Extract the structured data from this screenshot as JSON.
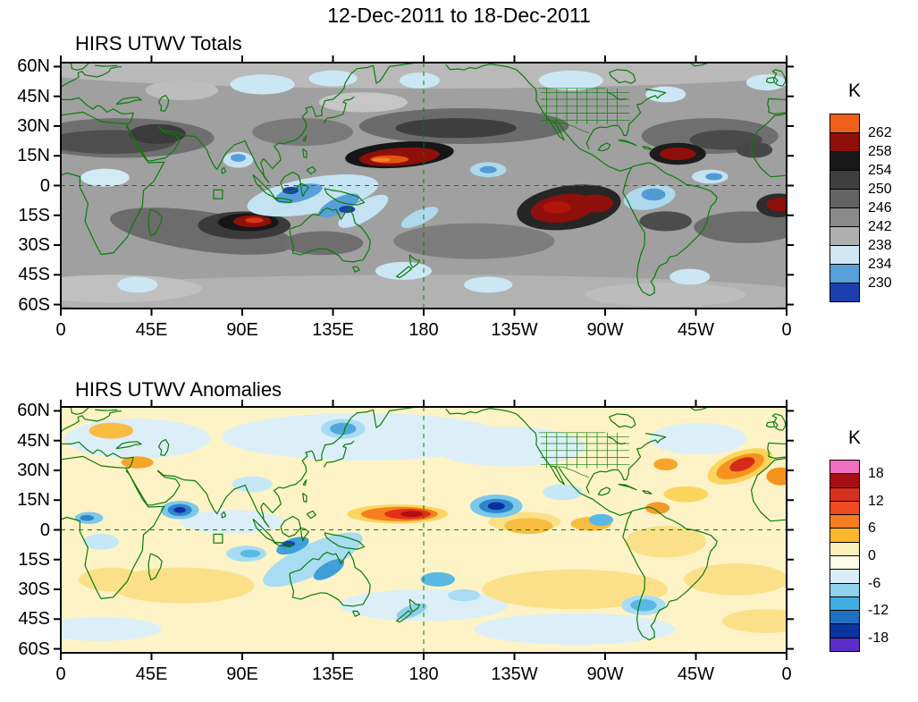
{
  "title": "12-Dec-2011 to 18-Dec-2011",
  "panels": [
    {
      "title": "HIRS UTWV Totals",
      "colorbar": {
        "unit": "K",
        "segments": [
          {
            "color": "#ef6119"
          },
          {
            "color": "#8f0f0b",
            "label": "262"
          },
          {
            "color": "#181818",
            "label": "258"
          },
          {
            "color": "#404040",
            "label": "254"
          },
          {
            "color": "#636363",
            "label": "250"
          },
          {
            "color": "#8a8a8a",
            "label": "246"
          },
          {
            "color": "#b0b0b0",
            "label": "242"
          },
          {
            "color": "#cfe8f4",
            "label": "238"
          },
          {
            "color": "#569fd8",
            "label": "234"
          },
          {
            "color": "#1c3fae",
            "label": "230"
          }
        ]
      }
    },
    {
      "title": "HIRS UTWV Anomalies",
      "colorbar": {
        "unit": "K",
        "segments": [
          {
            "color": "#f46ec0"
          },
          {
            "color": "#a50f15",
            "label": "18"
          },
          {
            "color": "#d7301f"
          },
          {
            "color": "#ef4a22",
            "label": "12"
          },
          {
            "color": "#f57f20"
          },
          {
            "color": "#fdb72e",
            "label": "6"
          },
          {
            "color": "#fcf0bc"
          },
          {
            "color": "#fefce9",
            "label": "0"
          },
          {
            "color": "#d9eef8"
          },
          {
            "color": "#8fd2ee",
            "label": "-6"
          },
          {
            "color": "#41aee2"
          },
          {
            "color": "#1a72c0",
            "label": "-12"
          },
          {
            "color": "#0a34a0"
          },
          {
            "color": "#5b2ec8",
            "label": "-18"
          }
        ]
      }
    }
  ],
  "axes": {
    "lat_ticks": [
      "60N",
      "45N",
      "30N",
      "15N",
      "0",
      "15S",
      "30S",
      "45S",
      "60S"
    ],
    "lat_values": [
      60,
      45,
      30,
      15,
      0,
      -15,
      -30,
      -45,
      -60
    ],
    "lon_ticks": [
      "0",
      "45E",
      "90E",
      "135E",
      "180",
      "135W",
      "90W",
      "45W",
      "0"
    ],
    "lon_values": [
      0,
      45,
      90,
      135,
      180,
      225,
      270,
      315,
      360
    ]
  },
  "map_colors": {
    "coastline": "#0a7c0a",
    "frame": "#000000",
    "totals_background": "#a0a0a0",
    "anomalies_background": "#fdf3c6"
  },
  "chart_data": [
    {
      "type": "heatmap",
      "title": "HIRS UTWV Totals",
      "subtitle": "12-Dec-2011 to 18-Dec-2011",
      "units": "K",
      "projection": "cylindrical equidistant, longitude 0E eastward to 0E, latitude ~62N to ~62S",
      "x_tick_labels": [
        "0",
        "45E",
        "90E",
        "135E",
        "180",
        "135W",
        "90W",
        "45W",
        "0"
      ],
      "y_tick_labels": [
        "60N",
        "45N",
        "30N",
        "15N",
        "0",
        "15S",
        "30S",
        "45S",
        "60S"
      ],
      "colorbar_levels_K": [
        230,
        234,
        238,
        242,
        246,
        250,
        254,
        258,
        262
      ],
      "colorbar_colors_top_to_bottom": [
        "#ef6119",
        "#8f0f0b",
        "#181818",
        "#404040",
        "#636363",
        "#8a8a8a",
        "#b0b0b0",
        "#cfe8f4",
        "#569fd8",
        "#1c3fae"
      ],
      "grid": false,
      "legend_position": "right colorbar",
      "notable_features": [
        "Warm/dry maximum >262 K elongated along ~13-15N from 150E to 180 (central North Pacific), orange core surrounded by dark red and near-black shading",
        "Warm core ~258-262 K near 18S, 90-100E (south Indian Ocean)",
        "Broad warm/dry region 254-262 K near 5-18S, 120-90W (southeast Pacific) extending toward South America",
        "Warm spot ~258 K near 16N, 55W (tropical North Atlantic) and near 10S at the right map edge",
        "Cold/moist minima <234 K over the Maritime Continent (0-15S, 100-150E), Bay of Bengal (~13N, 88E), central Pacific ITCZ (~8N, 148W), Amazon (~5S, 65W) and NE South America coast",
        "Light-blue (234-238 K) patches in midlatitudes near 50-60N and 40-50S",
        "Gray background values 238-254 K dominate the subtropics",
        "Dashed reference lines at the equator and at 180 longitude; small green survey box near 78E, 4S"
      ]
    },
    {
      "type": "heatmap",
      "title": "HIRS UTWV Anomalies",
      "subtitle": "12-Dec-2011 to 18-Dec-2011",
      "units": "K",
      "projection": "cylindrical equidistant, longitude 0E eastward to 0E, latitude ~62N to ~62S",
      "x_tick_labels": [
        "0",
        "45E",
        "90E",
        "135E",
        "180",
        "135W",
        "90W",
        "45W",
        "0"
      ],
      "y_tick_labels": [
        "60N",
        "45N",
        "30N",
        "15N",
        "0",
        "15S",
        "30S",
        "45S",
        "60S"
      ],
      "colorbar_levels_K": [
        -18,
        -12,
        -6,
        0,
        6,
        12,
        18
      ],
      "colorbar_colors_top_to_bottom": [
        "#f46ec0",
        "#a50f15",
        "#d7301f",
        "#ef4a22",
        "#f57f20",
        "#fdb72e",
        "#fcf0bc",
        "#fefce9",
        "#d9eef8",
        "#8fd2ee",
        "#41aee2",
        "#1a72c0",
        "#0a34a0",
        "#5b2ec8"
      ],
      "grid": false,
      "legend_position": "right colorbar",
      "notable_features": [
        "Strong positive anomaly +6 to +15 K along ~8N from 150E to 170W (central equatorial Pacific), red core near 175E",
        "Strong positive anomaly +6 to +12 K near 30-35N, 25-10W (northeast Atlantic), red core",
        "Negative anomaly -12 to -18 K centered near 12N, 145W (dark blue core)",
        "Negative anomaly down to -12 K near 10N, 60E (Arabian Sea)",
        "Negative band -6 to -12 K from Indonesia southeastward toward 25S, 140E",
        "Scattered -6 K patches: south-central Pacific ~25S 175W, southern South America ~38S 70W, NW Pacific ~50N 140E, west equatorial Africa",
        "Weak positive anomalies 0 to +6 K over much of the Southern Hemisphere subtropics and tropical Americas/Atlantic",
        "Weak negative anomalies 0 to -6 K across northern midlatitudes",
        "Dashed reference lines at the equator and at 180 longitude; small green survey box near 78E, 4S"
      ]
    }
  ]
}
